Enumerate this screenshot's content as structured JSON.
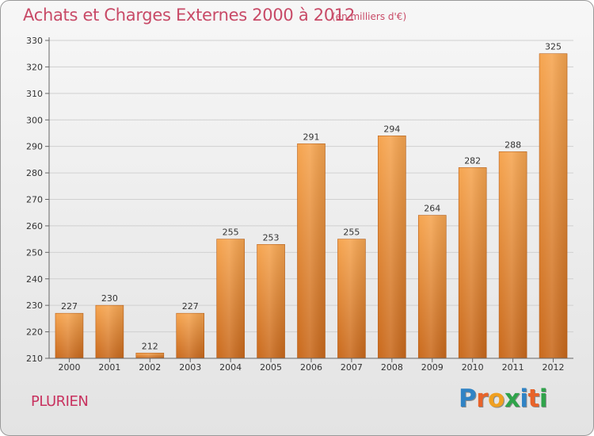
{
  "header": {
    "title": "Achats et Charges Externes 2000 à 2012",
    "unit": "(en milliers d'€)"
  },
  "footer": {
    "commune": "PLURIEN",
    "logo_letters": [
      "P",
      "r",
      "o",
      "x",
      "i",
      "t",
      "i"
    ],
    "logo_colors": [
      "#2f83c5",
      "#e8632a",
      "#f0a020",
      "#2fa34a",
      "#2f83c5",
      "#e8632a",
      "#2fa34a"
    ]
  },
  "colors": {
    "bar_light": "#f6a550",
    "bar_dark": "#c9691c",
    "axis": "#666666",
    "grid": "#d0d0d0"
  },
  "chart_data": {
    "type": "bar",
    "title": "Achats et Charges Externes 2000 à 2012",
    "subtitle": "(en milliers d'€)",
    "categories": [
      "2000",
      "2001",
      "2002",
      "2003",
      "2004",
      "2005",
      "2006",
      "2007",
      "2008",
      "2009",
      "2010",
      "2011",
      "2012"
    ],
    "values": [
      227,
      230,
      212,
      227,
      255,
      253,
      291,
      255,
      294,
      264,
      282,
      288,
      325
    ],
    "ylim": [
      210,
      330
    ],
    "yticks": [
      210,
      220,
      230,
      240,
      250,
      260,
      270,
      280,
      290,
      300,
      310,
      320,
      330
    ],
    "xlabel": "",
    "ylabel": "",
    "grid": true,
    "legend": "none"
  }
}
